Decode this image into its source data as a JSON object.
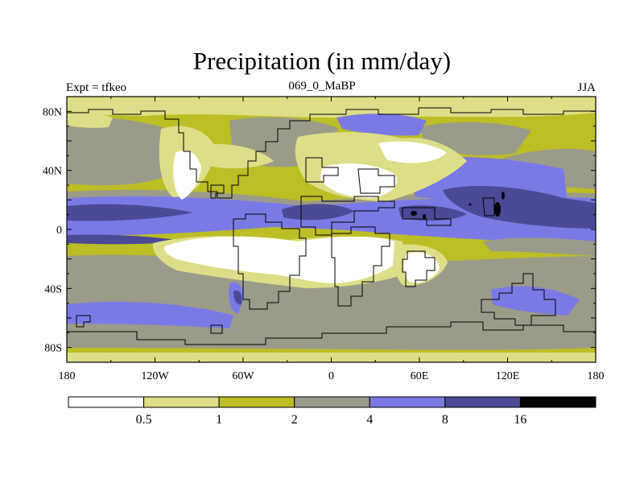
{
  "map": {
    "title": "Precipitation (in mm/day)",
    "left_label": "Expt = tfkeo",
    "center_label": "069_0_MaBP",
    "right_label": "JJA",
    "x_ticks": [
      "180",
      "120W",
      "60W",
      "0",
      "60E",
      "120E",
      "180"
    ],
    "y_ticks": [
      "80N",
      "40N",
      "0",
      "40S",
      "80S"
    ]
  },
  "colorbar": {
    "labels": [
      "0.5",
      "1",
      "2",
      "4",
      "8",
      "16"
    ],
    "colors": [
      "#ffffff",
      "#dede88",
      "#bdbd25",
      "#9b9b8a",
      "#7a7ae6",
      "#4a4a96",
      "#050505"
    ]
  }
}
